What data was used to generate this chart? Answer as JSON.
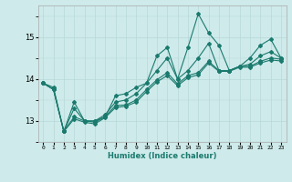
{
  "xlabel": "Humidex (Indice chaleur)",
  "ylabel": "",
  "x_ticks": [
    0,
    1,
    2,
    3,
    4,
    5,
    6,
    7,
    8,
    9,
    10,
    11,
    12,
    13,
    14,
    15,
    16,
    17,
    18,
    19,
    20,
    21,
    22,
    23
  ],
  "ylim": [
    12.5,
    15.75
  ],
  "xlim": [
    -0.5,
    23.5
  ],
  "bg_color": "#ceeaea",
  "line_color": "#1a7a6e",
  "grid_color": "#b8d8d8",
  "series": [
    [
      13.9,
      13.8,
      12.75,
      13.45,
      13.0,
      13.0,
      13.1,
      13.6,
      13.65,
      13.8,
      13.9,
      14.55,
      14.75,
      14.0,
      14.75,
      15.55,
      15.1,
      14.8,
      14.2,
      14.3,
      14.5,
      14.8,
      14.95,
      14.5
    ],
    [
      13.9,
      13.75,
      12.75,
      13.3,
      13.0,
      13.0,
      13.15,
      13.45,
      13.5,
      13.65,
      13.9,
      14.2,
      14.5,
      14.0,
      14.2,
      14.5,
      14.85,
      14.2,
      14.2,
      14.3,
      14.35,
      14.55,
      14.65,
      14.5
    ],
    [
      13.9,
      13.75,
      12.75,
      13.1,
      13.0,
      12.97,
      13.1,
      13.37,
      13.38,
      13.5,
      13.75,
      13.98,
      14.15,
      13.88,
      14.08,
      14.15,
      14.42,
      14.2,
      14.2,
      14.3,
      14.3,
      14.42,
      14.5,
      14.47
    ],
    [
      13.9,
      13.75,
      12.75,
      13.05,
      12.97,
      12.93,
      13.08,
      13.32,
      13.35,
      13.45,
      13.7,
      13.93,
      14.08,
      13.84,
      14.03,
      14.1,
      14.38,
      14.18,
      14.18,
      14.28,
      14.28,
      14.38,
      14.45,
      14.43
    ]
  ]
}
